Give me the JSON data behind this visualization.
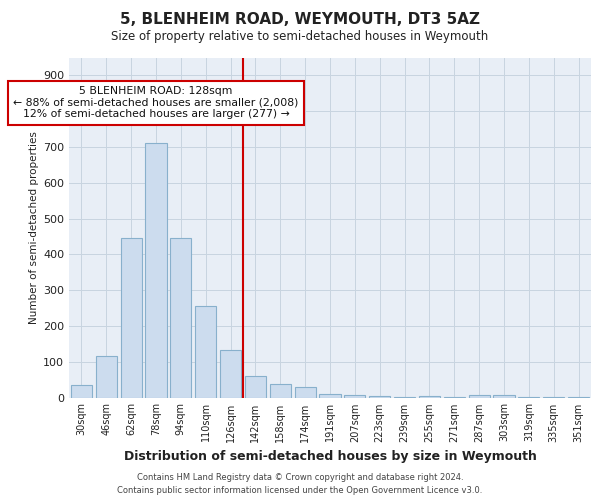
{
  "title": "5, BLENHEIM ROAD, WEYMOUTH, DT3 5AZ",
  "subtitle": "Size of property relative to semi-detached houses in Weymouth",
  "xlabel": "Distribution of semi-detached houses by size in Weymouth",
  "ylabel": "Number of semi-detached properties",
  "bar_color": "#ccdcee",
  "bar_edge_color": "#88b0cc",
  "grid_color": "#c8d4e0",
  "bg_color": "#e8eef6",
  "annotation_line_color": "#cc0000",
  "annotation_text_line1": "5 BLENHEIM ROAD: 128sqm",
  "annotation_text_line2": "← 88% of semi-detached houses are smaller (2,008)",
  "annotation_text_line3": "12% of semi-detached houses are larger (277) →",
  "categories": [
    "30sqm",
    "46sqm",
    "62sqm",
    "78sqm",
    "94sqm",
    "110sqm",
    "126sqm",
    "142sqm",
    "158sqm",
    "174sqm",
    "191sqm",
    "207sqm",
    "223sqm",
    "239sqm",
    "255sqm",
    "271sqm",
    "287sqm",
    "303sqm",
    "319sqm",
    "335sqm",
    "351sqm"
  ],
  "values": [
    35,
    117,
    447,
    710,
    447,
    255,
    133,
    60,
    37,
    30,
    10,
    7,
    3,
    2,
    3,
    1,
    8,
    7,
    2,
    2,
    2
  ],
  "ylim": [
    0,
    950
  ],
  "yticks": [
    0,
    100,
    200,
    300,
    400,
    500,
    600,
    700,
    800,
    900
  ],
  "property_bar_idx": 6.5,
  "footer_line1": "Contains HM Land Registry data © Crown copyright and database right 2024.",
  "footer_line2": "Contains public sector information licensed under the Open Government Licence v3.0."
}
